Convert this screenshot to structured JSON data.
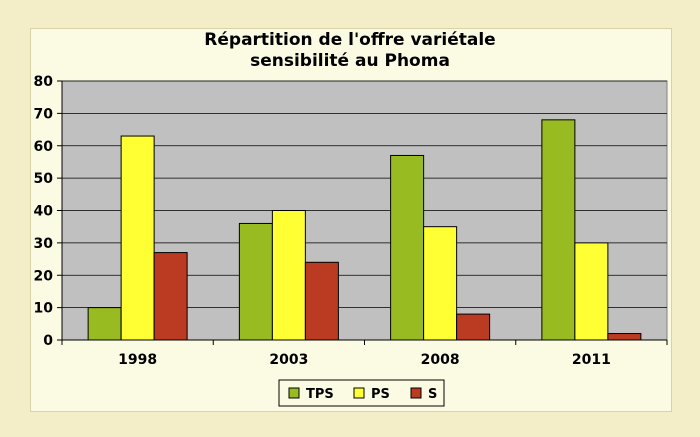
{
  "chart_data": {
    "type": "bar",
    "title_line1": "Répartition de l'offre variétale",
    "title_line2": "sensibilité au Phoma",
    "categories": [
      "1998",
      "2003",
      "2008",
      "2011"
    ],
    "series": [
      {
        "name": "TPS",
        "values": [
          10,
          36,
          57,
          68
        ],
        "color": "#99bb22"
      },
      {
        "name": "PS",
        "values": [
          63,
          40,
          35,
          30
        ],
        "color": "#ffff33"
      },
      {
        "name": "S",
        "values": [
          27,
          24,
          8,
          2
        ],
        "color": "#bb3a22"
      }
    ],
    "ylim": [
      0,
      80
    ],
    "yticks": [
      0,
      10,
      20,
      30,
      40,
      50,
      60,
      70,
      80
    ],
    "grid": true,
    "legend_position": "bottom",
    "plot_background": "#c0c0c0"
  }
}
